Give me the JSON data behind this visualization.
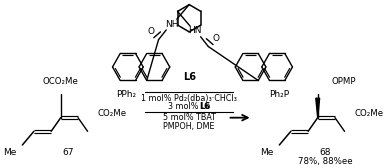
{
  "figsize": [
    3.88,
    1.68
  ],
  "dpi": 100,
  "background": "#ffffff",
  "text_color": "#000000",
  "line_color": "#000000",
  "reagent_line1": "1 mol% Pd₂(dba)₃·CHCl₃",
  "reagent_line2": "3 mol% ",
  "reagent_line2b": "L6",
  "reagent_line3": "5 mol% TBAT",
  "reagent_line4": "PMPOH, DME",
  "compound_left": "67",
  "compound_right": "68",
  "yield_text": "78%, 88%ee",
  "ligand_label": "L6",
  "pph2_left": "PPh₂",
  "pph2_right": "Ph₂P",
  "nh_left": "NH",
  "nh_right": "HN",
  "opmp": "OPMP",
  "co2me": "CO₂Me",
  "oco2me": "OCO₂Me",
  "me": "Me"
}
